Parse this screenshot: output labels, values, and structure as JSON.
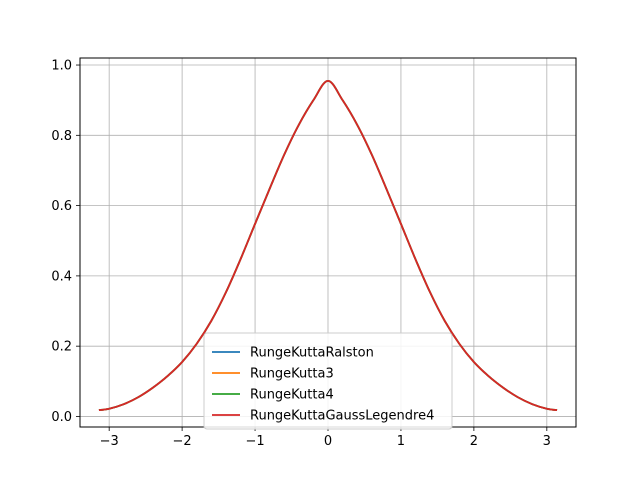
{
  "chart_data": {
    "type": "line",
    "title": "",
    "xlabel": "",
    "ylabel": "",
    "xlim": [
      -3.4,
      3.4
    ],
    "ylim": [
      -0.03,
      1.02
    ],
    "grid": true,
    "legend_position": "lower-center",
    "x_ticks": [
      -3,
      -2,
      -1,
      0,
      1,
      2,
      3
    ],
    "x_tick_labels": [
      "−3",
      "−2",
      "−1",
      "0",
      "1",
      "2",
      "3"
    ],
    "y_ticks": [
      0.0,
      0.2,
      0.4,
      0.6,
      0.8,
      1.0
    ],
    "y_tick_labels": [
      "0.0",
      "0.2",
      "0.4",
      "0.6",
      "0.8",
      "1.0"
    ],
    "x": [
      -3.14,
      -3.0,
      -2.8,
      -2.6,
      -2.4,
      -2.2,
      -2.0,
      -1.8,
      -1.6,
      -1.4,
      -1.2,
      -1.0,
      -0.8,
      -0.6,
      -0.4,
      -0.2,
      0.0,
      0.2,
      0.4,
      0.6,
      0.8,
      1.0,
      1.2,
      1.4,
      1.6,
      1.8,
      2.0,
      2.2,
      2.4,
      2.6,
      2.8,
      3.0,
      3.14
    ],
    "series": [
      {
        "name": "RungeKuttaRalston",
        "color": "#1f77b4",
        "values": [
          0.018,
          0.022,
          0.035,
          0.055,
          0.082,
          0.115,
          0.155,
          0.207,
          0.272,
          0.353,
          0.447,
          0.548,
          0.648,
          0.745,
          0.83,
          0.9,
          0.955,
          0.9,
          0.83,
          0.745,
          0.648,
          0.548,
          0.447,
          0.353,
          0.272,
          0.207,
          0.155,
          0.115,
          0.082,
          0.055,
          0.035,
          0.022,
          0.018
        ]
      },
      {
        "name": "RungeKutta3",
        "color": "#ff7f0e",
        "values": [
          0.018,
          0.022,
          0.035,
          0.055,
          0.082,
          0.115,
          0.155,
          0.207,
          0.272,
          0.353,
          0.447,
          0.548,
          0.648,
          0.745,
          0.83,
          0.9,
          0.955,
          0.9,
          0.83,
          0.745,
          0.648,
          0.548,
          0.447,
          0.353,
          0.272,
          0.207,
          0.155,
          0.115,
          0.082,
          0.055,
          0.035,
          0.022,
          0.018
        ]
      },
      {
        "name": "RungeKutta4",
        "color": "#2ca02c",
        "values": [
          0.018,
          0.022,
          0.035,
          0.055,
          0.082,
          0.115,
          0.155,
          0.207,
          0.272,
          0.353,
          0.447,
          0.548,
          0.648,
          0.745,
          0.83,
          0.9,
          0.955,
          0.9,
          0.83,
          0.745,
          0.648,
          0.548,
          0.447,
          0.353,
          0.272,
          0.207,
          0.155,
          0.115,
          0.082,
          0.055,
          0.035,
          0.022,
          0.018
        ]
      },
      {
        "name": "RungeKuttaGaussLegendre4",
        "color": "#d62728",
        "values": [
          0.018,
          0.022,
          0.035,
          0.055,
          0.082,
          0.115,
          0.155,
          0.207,
          0.272,
          0.353,
          0.447,
          0.548,
          0.648,
          0.745,
          0.83,
          0.9,
          0.955,
          0.9,
          0.83,
          0.745,
          0.648,
          0.548,
          0.447,
          0.353,
          0.272,
          0.207,
          0.155,
          0.115,
          0.082,
          0.055,
          0.035,
          0.022,
          0.018
        ]
      }
    ]
  }
}
